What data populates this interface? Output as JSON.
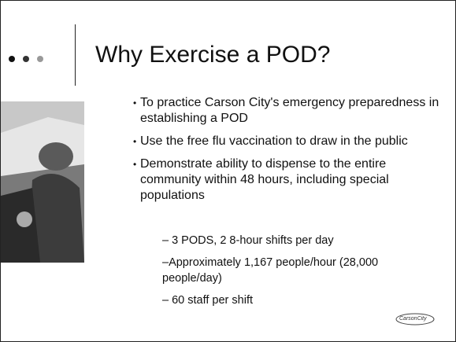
{
  "slide": {
    "title": "Why Exercise a POD?",
    "bullets": [
      "To practice Carson City's emergency preparedness in establishing a POD",
      "Use the free flu vaccination to draw in the public",
      "Demonstrate ability to dispense to the entire community within 48 hours, including special populations"
    ],
    "sub_bullets": [
      "– 3 PODS, 2 8-hour shifts per day",
      "–Approximately 1,167 people/hour (28,000 people/day)",
      "– 60 staff per shift"
    ],
    "logo": "CarsonCity"
  }
}
